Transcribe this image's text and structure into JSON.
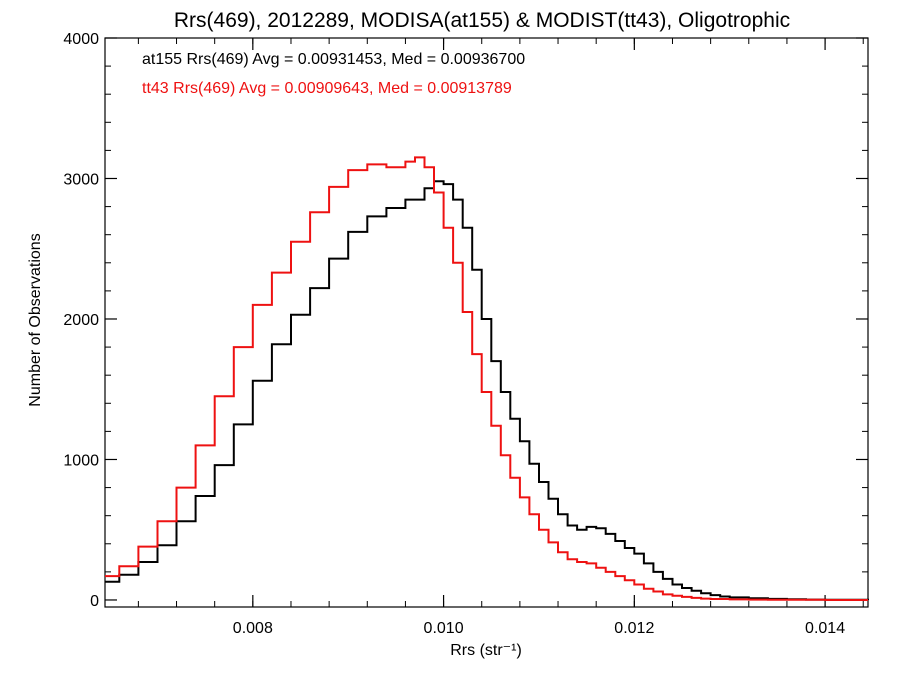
{
  "chart_data": {
    "type": "line",
    "title": "Rrs(469), 2012289, MODISA(at155) & MODIST(tt43), Oligotrophic",
    "xlabel": "Rrs (str⁻¹)",
    "ylabel": "Number of Observations",
    "xlim": [
      0.00645,
      0.01445
    ],
    "ylim": [
      -50,
      4000
    ],
    "x_ticks": [
      0.008,
      0.01,
      0.012,
      0.014
    ],
    "x_tick_labels": [
      "0.008",
      "0.010",
      "0.012",
      "0.014"
    ],
    "y_ticks": [
      0,
      1000,
      2000,
      3000,
      4000
    ],
    "y_tick_labels": [
      "0",
      "1000",
      "2000",
      "3000",
      "4000"
    ],
    "grid": false,
    "annotations": [
      {
        "text": "at155 Rrs(469) Avg = 0.00931453, Med = 0.00936700",
        "color": "#000000"
      },
      {
        "text": "tt43 Rrs(469) Avg = 0.00909643, Med = 0.00913789",
        "color": "#ee1111"
      }
    ],
    "series": [
      {
        "color": "#000000",
        "x": [
          0.00645,
          0.0066,
          0.0068,
          0.007,
          0.0072,
          0.0074,
          0.0076,
          0.0078,
          0.008,
          0.0082,
          0.0084,
          0.0086,
          0.0088,
          0.009,
          0.0092,
          0.0094,
          0.0096,
          0.0098,
          0.0099,
          0.01,
          0.0101,
          0.0102,
          0.0103,
          0.0104,
          0.0105,
          0.0106,
          0.0107,
          0.0108,
          0.0109,
          0.011,
          0.0111,
          0.0112,
          0.0113,
          0.0114,
          0.0115,
          0.0116,
          0.0117,
          0.0118,
          0.0119,
          0.012,
          0.0121,
          0.0122,
          0.0123,
          0.0124,
          0.0125,
          0.0126,
          0.0127,
          0.0128,
          0.0129,
          0.013,
          0.0132,
          0.0134,
          0.0136,
          0.0138,
          0.014,
          0.0142,
          0.01445
        ],
        "values": [
          130,
          180,
          270,
          390,
          560,
          740,
          960,
          1250,
          1560,
          1820,
          2030,
          2220,
          2430,
          2620,
          2730,
          2790,
          2850,
          2930,
          2980,
          2960,
          2850,
          2650,
          2350,
          2000,
          1700,
          1480,
          1290,
          1130,
          970,
          840,
          720,
          610,
          530,
          500,
          520,
          510,
          470,
          420,
          370,
          330,
          260,
          200,
          150,
          110,
          85,
          65,
          48,
          35,
          25,
          18,
          12,
          8,
          5,
          3,
          2,
          1,
          0
        ]
      },
      {
        "color": "#ee1111",
        "x": [
          0.00645,
          0.0066,
          0.0068,
          0.007,
          0.0072,
          0.0074,
          0.0076,
          0.0078,
          0.008,
          0.0082,
          0.0084,
          0.0086,
          0.0088,
          0.009,
          0.0092,
          0.0094,
          0.0096,
          0.0097,
          0.0098,
          0.0099,
          0.01,
          0.0101,
          0.0102,
          0.0103,
          0.0104,
          0.0105,
          0.0106,
          0.0107,
          0.0108,
          0.0109,
          0.011,
          0.0111,
          0.0112,
          0.0113,
          0.0114,
          0.0115,
          0.0116,
          0.0117,
          0.0118,
          0.0119,
          0.012,
          0.0121,
          0.0122,
          0.0123,
          0.0124,
          0.0125,
          0.0126,
          0.0127,
          0.0128,
          0.013,
          0.0132,
          0.0134,
          0.0136,
          0.0138,
          0.014,
          0.0142,
          0.01445
        ],
        "values": [
          170,
          240,
          380,
          560,
          800,
          1100,
          1450,
          1800,
          2100,
          2330,
          2550,
          2760,
          2940,
          3060,
          3100,
          3080,
          3120,
          3150,
          3080,
          2900,
          2650,
          2400,
          2050,
          1750,
          1480,
          1240,
          1030,
          870,
          730,
          610,
          500,
          410,
          340,
          290,
          270,
          260,
          230,
          200,
          170,
          140,
          110,
          80,
          60,
          40,
          30,
          22,
          15,
          10,
          7,
          4,
          3,
          2,
          1,
          1,
          0,
          0,
          0
        ]
      }
    ]
  }
}
